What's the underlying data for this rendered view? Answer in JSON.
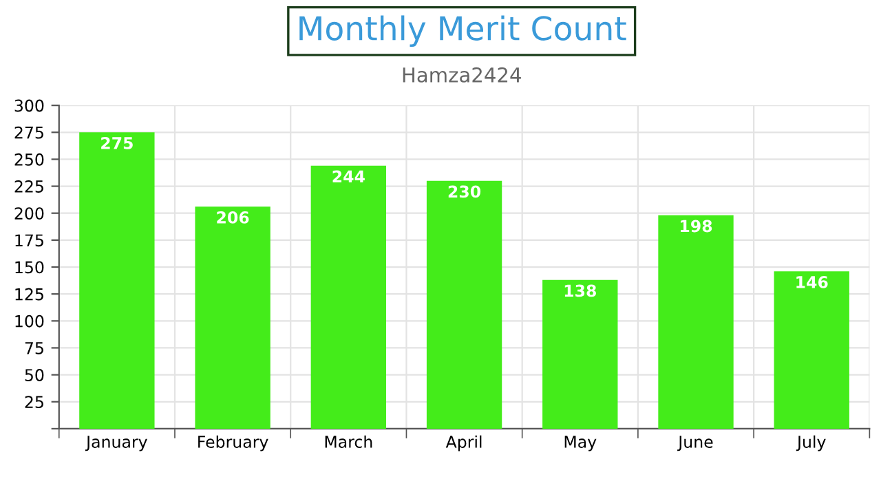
{
  "chart_data": {
    "type": "bar",
    "title": "Monthly Merit Count",
    "subtitle": "Hamza2424",
    "categories": [
      "January",
      "February",
      "March",
      "April",
      "May",
      "June",
      "July"
    ],
    "values": [
      275,
      206,
      244,
      230,
      138,
      198,
      146
    ],
    "color": "#44ec1a",
    "ylim": [
      0,
      300
    ],
    "yticks": [
      {
        "value": 0,
        "label": null
      },
      25,
      50,
      75,
      100,
      125,
      150,
      175,
      200,
      225,
      250,
      275,
      300
    ],
    "grid": true,
    "data_labels": true
  }
}
